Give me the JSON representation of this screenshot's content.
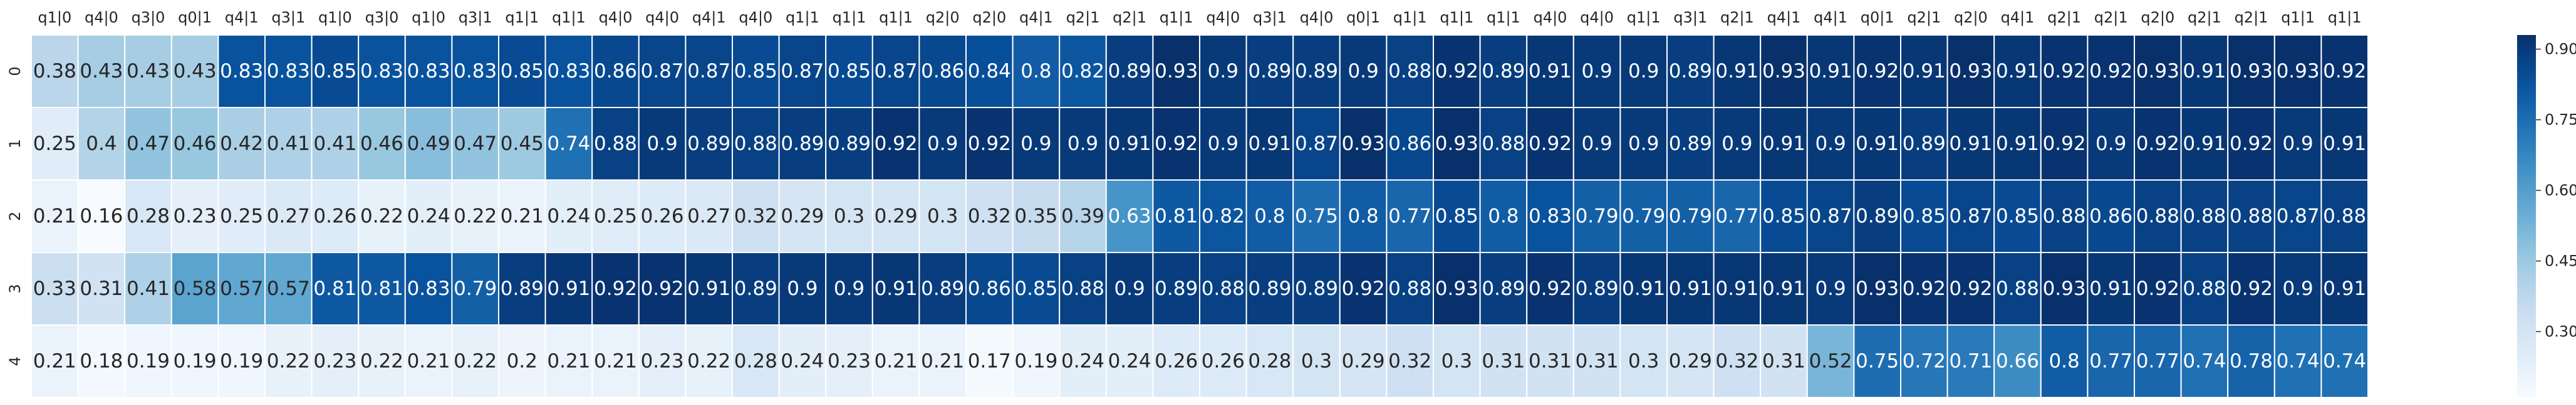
{
  "chart_data": {
    "type": "heatmap",
    "title": "",
    "xlabel": "",
    "ylabel": "",
    "columns": [
      "q1|0",
      "q4|0",
      "q3|0",
      "q0|1",
      "q4|1",
      "q3|1",
      "q1|0",
      "q3|0",
      "q1|0",
      "q3|1",
      "q1|1",
      "q1|1",
      "q4|0",
      "q4|0",
      "q4|1",
      "q4|0",
      "q1|1",
      "q1|1",
      "q1|1",
      "q2|0",
      "q2|0",
      "q4|1",
      "q2|1",
      "q2|1",
      "q1|1",
      "q4|0",
      "q3|1",
      "q4|0",
      "q0|1",
      "q1|1",
      "q1|1",
      "q1|1",
      "q4|0",
      "q4|0",
      "q1|1",
      "q3|1",
      "q2|1",
      "q4|1",
      "q4|1",
      "q0|1",
      "q2|1",
      "q2|0",
      "q4|1",
      "q2|1",
      "q2|1",
      "q2|0",
      "q2|1",
      "q2|1",
      "q1|1",
      "q1|1"
    ],
    "rows": [
      "0",
      "1",
      "2",
      "3",
      "4"
    ],
    "values": [
      [
        0.38,
        0.43,
        0.43,
        0.43,
        0.83,
        0.83,
        0.85,
        0.83,
        0.83,
        0.83,
        0.85,
        0.83,
        0.86,
        0.87,
        0.87,
        0.85,
        0.87,
        0.85,
        0.87,
        0.86,
        0.84,
        0.8,
        0.82,
        0.89,
        0.93,
        0.9,
        0.89,
        0.89,
        0.9,
        0.88,
        0.92,
        0.89,
        0.91,
        0.9,
        0.9,
        0.89,
        0.91,
        0.93,
        0.91,
        0.92,
        0.91,
        0.93,
        0.91,
        0.92,
        0.92,
        0.93,
        0.91,
        0.93,
        0.93,
        0.92
      ],
      [
        0.25,
        0.4,
        0.47,
        0.46,
        0.42,
        0.41,
        0.41,
        0.46,
        0.49,
        0.47,
        0.45,
        0.74,
        0.88,
        0.9,
        0.89,
        0.88,
        0.89,
        0.89,
        0.92,
        0.9,
        0.92,
        0.9,
        0.9,
        0.91,
        0.92,
        0.9,
        0.91,
        0.87,
        0.93,
        0.86,
        0.93,
        0.88,
        0.92,
        0.9,
        0.9,
        0.89,
        0.9,
        0.91,
        0.9,
        0.91,
        0.89,
        0.91,
        0.91,
        0.92,
        0.9,
        0.92,
        0.91,
        0.92,
        0.9,
        0.91
      ],
      [
        0.21,
        0.16,
        0.28,
        0.23,
        0.25,
        0.27,
        0.26,
        0.22,
        0.24,
        0.22,
        0.21,
        0.24,
        0.25,
        0.26,
        0.27,
        0.32,
        0.29,
        0.3,
        0.29,
        0.3,
        0.32,
        0.35,
        0.39,
        0.63,
        0.81,
        0.82,
        0.8,
        0.75,
        0.8,
        0.77,
        0.85,
        0.8,
        0.83,
        0.79,
        0.79,
        0.79,
        0.77,
        0.85,
        0.87,
        0.89,
        0.85,
        0.87,
        0.85,
        0.88,
        0.86,
        0.88,
        0.88,
        0.88,
        0.87,
        0.88
      ],
      [
        0.33,
        0.31,
        0.41,
        0.58,
        0.57,
        0.57,
        0.81,
        0.81,
        0.83,
        0.79,
        0.89,
        0.91,
        0.92,
        0.92,
        0.91,
        0.89,
        0.9,
        0.9,
        0.91,
        0.89,
        0.86,
        0.85,
        0.88,
        0.9,
        0.89,
        0.88,
        0.89,
        0.89,
        0.92,
        0.88,
        0.93,
        0.89,
        0.92,
        0.89,
        0.91,
        0.91,
        0.91,
        0.91,
        0.9,
        0.93,
        0.92,
        0.92,
        0.88,
        0.93,
        0.91,
        0.92,
        0.88,
        0.92,
        0.9,
        0.91
      ],
      [
        0.21,
        0.18,
        0.19,
        0.19,
        0.19,
        0.22,
        0.23,
        0.22,
        0.21,
        0.22,
        0.2,
        0.21,
        0.21,
        0.23,
        0.22,
        0.28,
        0.24,
        0.23,
        0.21,
        0.21,
        0.17,
        0.19,
        0.24,
        0.24,
        0.26,
        0.26,
        0.28,
        0.3,
        0.29,
        0.32,
        0.3,
        0.31,
        0.31,
        0.31,
        0.3,
        0.29,
        0.32,
        0.31,
        0.52,
        0.75,
        0.72,
        0.71,
        0.66,
        0.8,
        0.77,
        0.77,
        0.74,
        0.78,
        0.74,
        0.74
      ]
    ],
    "colorbar": {
      "min": 0.16,
      "max": 0.93,
      "ticks": [
        0.3,
        0.45,
        0.6,
        0.75,
        0.9
      ],
      "tick_labels": [
        "0.30",
        "0.45",
        "0.60",
        "0.75",
        "0.90"
      ]
    },
    "colormap": "Blues",
    "annotations": "cell values",
    "grid": false,
    "legend": "colorbar-right"
  },
  "colors": {
    "background": "#ffffff",
    "cell_border": "#ffffff",
    "text_dark": "#262626",
    "text_light": "#ffffff",
    "blues_stops": [
      "#f7fbff",
      "#deebf7",
      "#c6dbef",
      "#9ecae1",
      "#6baed6",
      "#4292c6",
      "#2171b5",
      "#08519c",
      "#08306b"
    ]
  }
}
